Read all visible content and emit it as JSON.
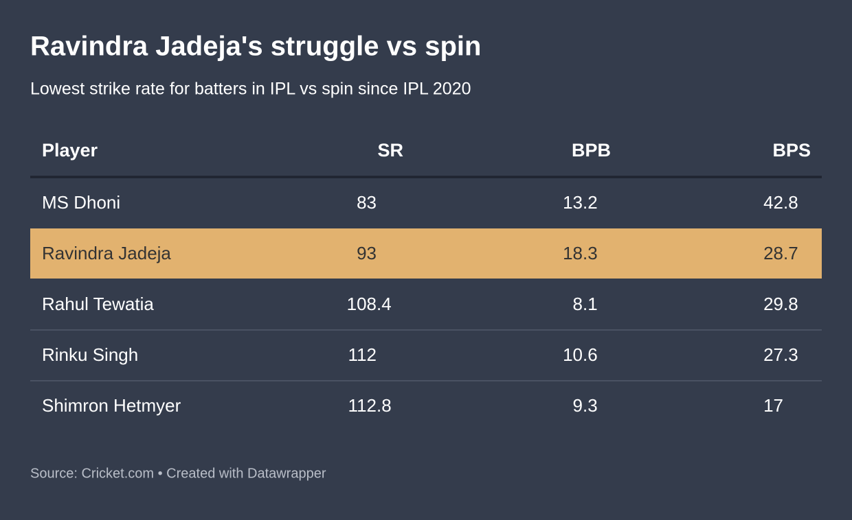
{
  "header": {
    "title": "Ravindra Jadeja's struggle vs spin",
    "subtitle": "Lowest strike rate for batters in IPL vs spin since IPL 2020"
  },
  "table": {
    "columns": [
      "Player",
      "SR",
      "BPB",
      "BPS"
    ],
    "rows": [
      [
        "MS Dhoni",
        83,
        13.2,
        42.8
      ],
      [
        "Ravindra Jadeja",
        93,
        18.3,
        28.7
      ],
      [
        "Rahul Tewatia",
        108.4,
        8.1,
        29.8
      ],
      [
        "Rinku Singh",
        112,
        10.6,
        27.3
      ],
      [
        "Shimron Hetmyer",
        112.8,
        9.3,
        17
      ]
    ],
    "highlight_row": 1
  },
  "footer": {
    "source": "Source: Cricket.com • Created with Datawrapper"
  }
}
